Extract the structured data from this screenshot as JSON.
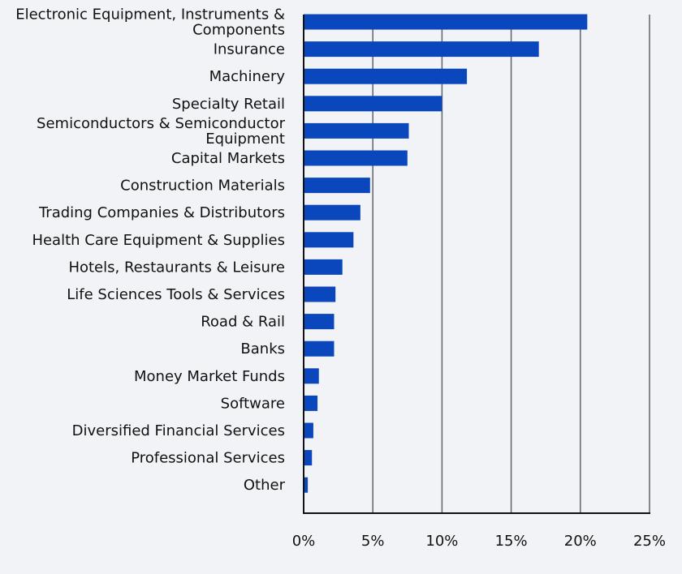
{
  "chart_data": {
    "type": "bar",
    "orientation": "horizontal",
    "categories": [
      "Electronic Equipment, Instruments & Components",
      "Insurance",
      "Machinery",
      "Specialty Retail",
      "Semiconductors & Semiconductor Equipment",
      "Capital Markets",
      "Construction Materials",
      "Trading Companies & Distributors",
      "Health Care Equipment & Supplies",
      "Hotels, Restaurants & Leisure",
      "Life Sciences Tools & Services",
      "Road & Rail",
      "Banks",
      "Money Market Funds",
      "Software",
      "Diversified Financial Services",
      "Professional Services",
      "Other"
    ],
    "category_lines": [
      [
        "Electronic Equipment, Instruments &",
        "Components"
      ],
      [
        "Insurance"
      ],
      [
        "Machinery"
      ],
      [
        "Specialty Retail"
      ],
      [
        "Semiconductors & Semiconductor",
        "Equipment"
      ],
      [
        "Capital Markets"
      ],
      [
        "Construction Materials"
      ],
      [
        "Trading Companies & Distributors"
      ],
      [
        "Health Care Equipment & Supplies"
      ],
      [
        "Hotels, Restaurants & Leisure"
      ],
      [
        "Life Sciences Tools & Services"
      ],
      [
        "Road & Rail"
      ],
      [
        "Banks"
      ],
      [
        "Money Market Funds"
      ],
      [
        "Software"
      ],
      [
        "Diversified Financial Services"
      ],
      [
        "Professional Services"
      ],
      [
        "Other"
      ]
    ],
    "values": [
      20.5,
      17.0,
      11.8,
      10.0,
      7.6,
      7.5,
      4.8,
      4.1,
      3.6,
      2.8,
      2.3,
      2.2,
      2.2,
      1.1,
      1.0,
      0.7,
      0.6,
      0.3
    ],
    "xlim": [
      0,
      25
    ],
    "xticks": [
      0,
      5,
      10,
      15,
      20,
      25
    ],
    "xtick_labels": [
      "0%",
      "5%",
      "10%",
      "15%",
      "20%",
      "25%"
    ],
    "title": "",
    "xlabel": "",
    "ylabel": "",
    "grid": "vertical",
    "legend": "none",
    "colors": {
      "bar": "#0a47bd",
      "grid": "#5c6670",
      "axis": "#111111",
      "background": "#f1f3f6"
    }
  }
}
